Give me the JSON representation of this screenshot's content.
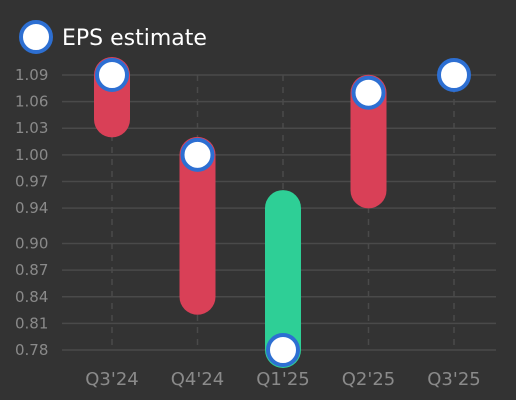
{
  "legend": {
    "label": "EPS estimate"
  },
  "colors": {
    "background": "#333333",
    "grid": "#4a4a4a",
    "tick_text": "#8a8a8a",
    "down": "#d94057",
    "up": "#2ecf96",
    "marker_fill": "#ffffff",
    "marker_stroke": "#2d6fd2"
  },
  "chart_data": {
    "type": "range-bar",
    "categories": [
      "Q3'24",
      "Q4'24",
      "Q1'25",
      "Q2'25",
      "Q3'25"
    ],
    "y_ticks": [
      "0.78",
      "0.81",
      "0.84",
      "0.87",
      "0.90",
      "0.94",
      "0.97",
      "1.00",
      "1.03",
      "1.06",
      "1.09"
    ],
    "ylim": [
      0.78,
      1.09
    ],
    "series": [
      {
        "name": "EPS estimate",
        "values": [
          1.09,
          1.0,
          0.78,
          1.07,
          1.09
        ]
      }
    ],
    "actual": [
      1.04,
      0.84,
      0.94,
      0.96,
      null
    ],
    "grid": true,
    "legend_position": "top-left"
  }
}
